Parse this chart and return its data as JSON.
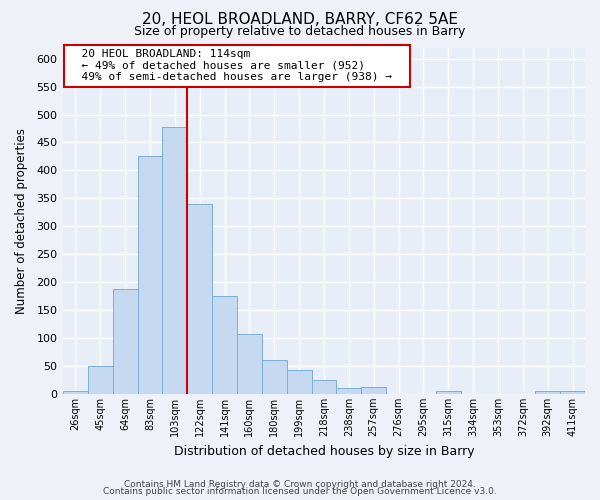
{
  "title1": "20, HEOL BROADLAND, BARRY, CF62 5AE",
  "title2": "Size of property relative to detached houses in Barry",
  "xlabel": "Distribution of detached houses by size in Barry",
  "ylabel": "Number of detached properties",
  "bin_labels": [
    "26sqm",
    "45sqm",
    "64sqm",
    "83sqm",
    "103sqm",
    "122sqm",
    "141sqm",
    "160sqm",
    "180sqm",
    "199sqm",
    "218sqm",
    "238sqm",
    "257sqm",
    "276sqm",
    "295sqm",
    "315sqm",
    "334sqm",
    "353sqm",
    "372sqm",
    "392sqm",
    "411sqm"
  ],
  "bar_heights": [
    5,
    50,
    188,
    425,
    477,
    340,
    175,
    107,
    60,
    43,
    25,
    10,
    12,
    0,
    0,
    5,
    0,
    0,
    0,
    5,
    5
  ],
  "bar_color": "#c5d9f0",
  "bar_edge_color": "#7bafd4",
  "property_label": "20 HEOL BROADLAND: 114sqm",
  "line_label_smaller": "← 49% of detached houses are smaller (952)",
  "line_label_larger": "49% of semi-detached houses are larger (938) →",
  "vline_color": "#cc0000",
  "annotation_box_facecolor": "#ffffff",
  "annotation_box_edgecolor": "#cc0000",
  "ylim": [
    0,
    620
  ],
  "yticks": [
    0,
    50,
    100,
    150,
    200,
    250,
    300,
    350,
    400,
    450,
    500,
    550,
    600
  ],
  "footer1": "Contains HM Land Registry data © Crown copyright and database right 2024.",
  "footer2": "Contains public sector information licensed under the Open Government Licence v3.0.",
  "bg_color": "#eef2f8",
  "plot_bg_color": "#e8eef7",
  "grid_color": "#ffffff"
}
